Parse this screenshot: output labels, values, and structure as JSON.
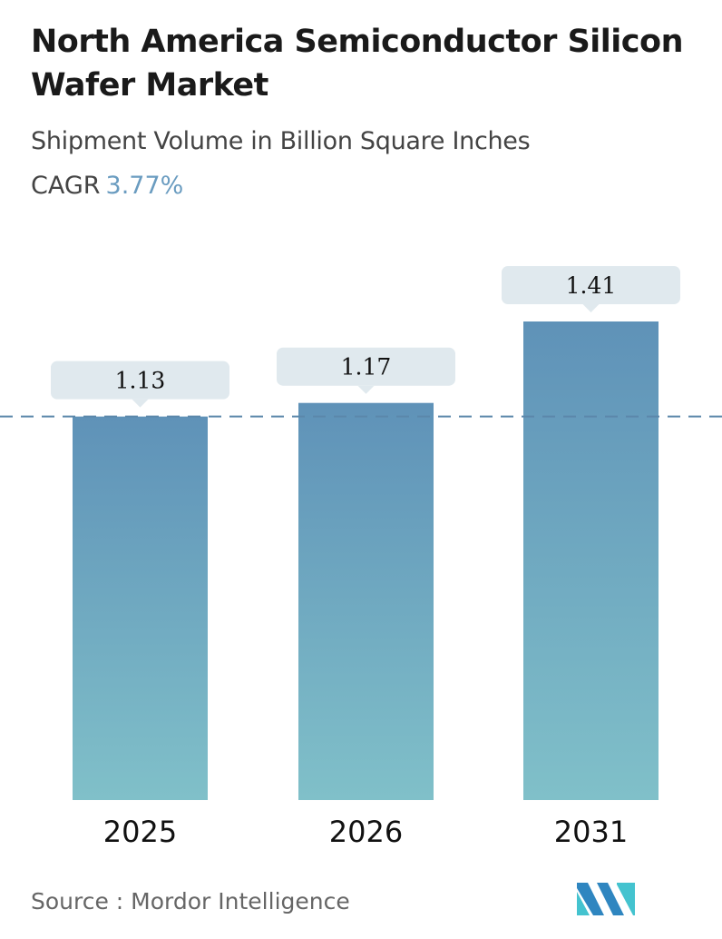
{
  "header": {
    "title": "North America Semiconductor Silicon Wafer Market",
    "subtitle": "Shipment Volume in Billion Square Inches",
    "cagr_label": "CAGR",
    "cagr_value": "3.77%"
  },
  "chart_data": {
    "type": "bar",
    "categories": [
      "2025",
      "2026",
      "2031"
    ],
    "values": [
      1.13,
      1.17,
      1.41
    ],
    "data_labels": [
      "1.13",
      "1.17",
      "1.41"
    ],
    "ylim": [
      0,
      1.41
    ],
    "grid": false,
    "reference_line": 1.13,
    "colors": {
      "bar_top": "#5f92b8",
      "bar_bottom": "#80c0c9",
      "label_bg": "#e0e9ee",
      "reference_line": "#5b87aa"
    }
  },
  "footer": {
    "source": "Source :  Mordor Intelligence",
    "logo_text": "Mordor Intelligence"
  }
}
